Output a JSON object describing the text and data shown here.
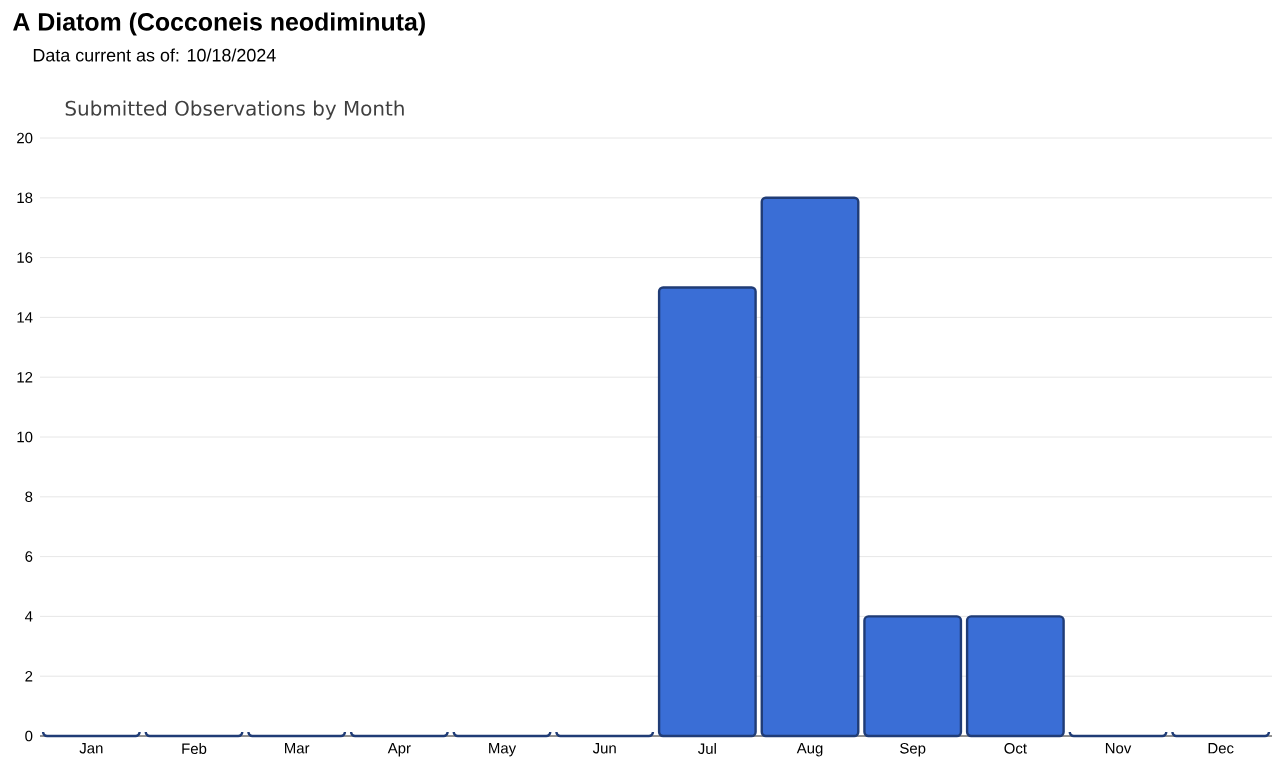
{
  "chart_data": {
    "type": "bar",
    "title": "A Diatom   (Cocconeis neodiminuta)",
    "subtitle": "Data current as of: 10/18/2024",
    "annotations": [
      "Submitted Observations by Month"
    ],
    "categories": [
      "Jan",
      "Feb",
      "Mar",
      "Apr",
      "May",
      "Jun",
      "Jul",
      "Aug",
      "Sep",
      "Oct",
      "Nov",
      "Dec"
    ],
    "values": [
      0,
      0,
      0,
      0,
      0,
      0,
      15,
      18,
      4,
      4,
      0,
      0
    ],
    "color": "#3a6ed6",
    "ylim": [
      0,
      20
    ],
    "yticks": [
      0,
      2,
      4,
      6,
      8,
      10,
      12,
      14,
      16,
      18,
      20
    ],
    "grid": "y"
  }
}
